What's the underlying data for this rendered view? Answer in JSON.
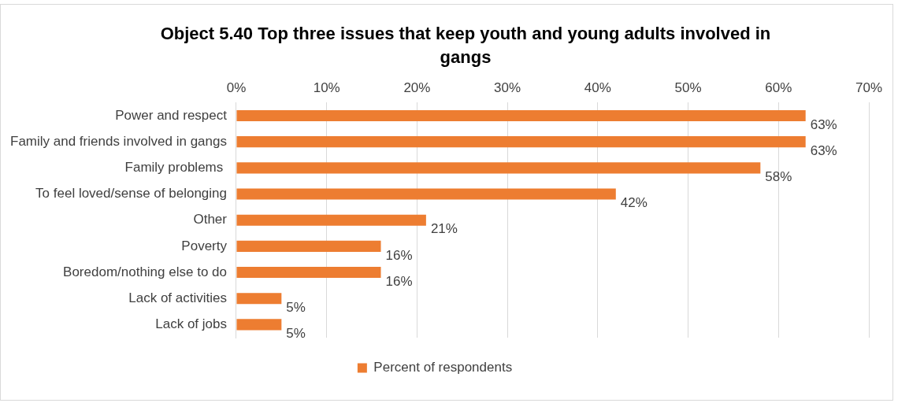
{
  "chart_data": {
    "type": "bar",
    "orientation": "horizontal",
    "title": "Object 5.40 Top three issues that keep youth and young adults involved in gangs",
    "categories": [
      "Power and respect",
      "Family and friends involved in gangs",
      "Family problems ",
      "To feel loved/sense of belonging",
      "Other",
      "Poverty",
      "Boredom/nothing else to do",
      "Lack of activities",
      "Lack of jobs"
    ],
    "series": [
      {
        "name": "Percent of respondents",
        "color": "#ed7d31",
        "values": [
          63,
          63,
          58,
          42,
          21,
          16,
          16,
          5,
          5
        ],
        "value_labels": [
          "63%",
          "63%",
          "58%",
          "42%",
          "21%",
          "16%",
          "16%",
          "5%",
          "5%"
        ]
      }
    ],
    "xlim": [
      0,
      70
    ],
    "xticks": [
      {
        "value": 0,
        "label": "0%"
      },
      {
        "value": 10,
        "label": "10%"
      },
      {
        "value": 20,
        "label": "20%"
      },
      {
        "value": 30,
        "label": "30%"
      },
      {
        "value": 40,
        "label": "40%"
      },
      {
        "value": 50,
        "label": "50%"
      },
      {
        "value": 60,
        "label": "60%"
      },
      {
        "value": 70,
        "label": "70%"
      }
    ],
    "grid": "x",
    "legend": "bottom"
  }
}
